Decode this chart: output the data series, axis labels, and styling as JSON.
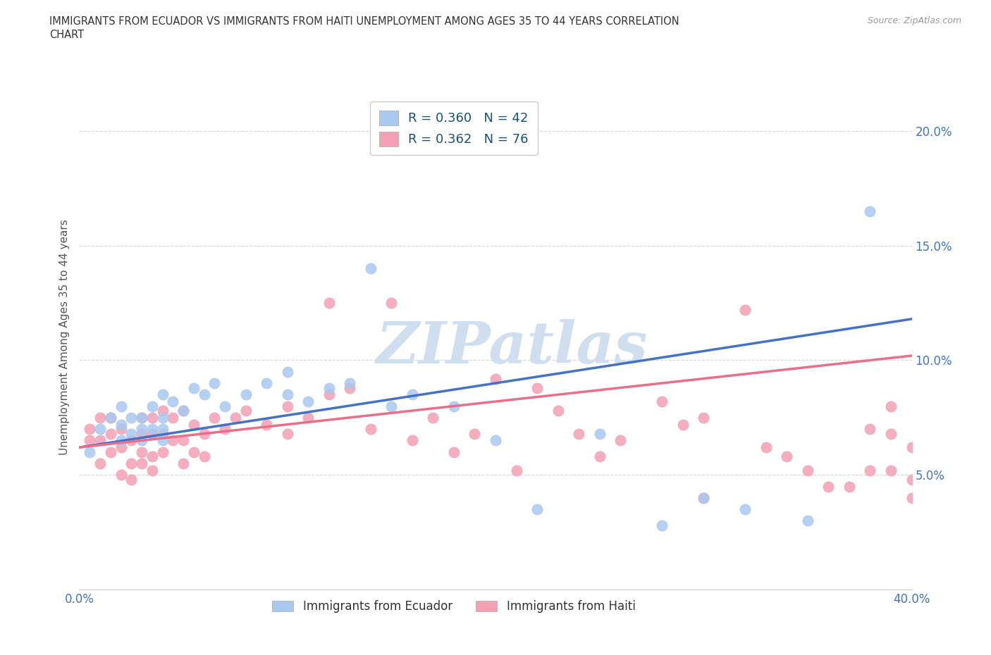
{
  "title_line1": "IMMIGRANTS FROM ECUADOR VS IMMIGRANTS FROM HAITI UNEMPLOYMENT AMONG AGES 35 TO 44 YEARS CORRELATION",
  "title_line2": "CHART",
  "source_text": "Source: ZipAtlas.com",
  "ylabel": "Unemployment Among Ages 35 to 44 years",
  "xlim": [
    0.0,
    0.4
  ],
  "ylim": [
    0.0,
    0.22
  ],
  "xticks": [
    0.0,
    0.05,
    0.1,
    0.15,
    0.2,
    0.25,
    0.3,
    0.35,
    0.4
  ],
  "yticks": [
    0.0,
    0.05,
    0.1,
    0.15,
    0.2
  ],
  "ecuador_color": "#a8c8f0",
  "haiti_color": "#f4a0b5",
  "ecuador_line_color": "#4472c4",
  "haiti_line_color": "#e8708a",
  "ecuador_R": 0.36,
  "ecuador_N": 42,
  "haiti_R": 0.362,
  "haiti_N": 76,
  "ecuador_scatter_x": [
    0.005,
    0.01,
    0.015,
    0.02,
    0.02,
    0.02,
    0.025,
    0.025,
    0.03,
    0.03,
    0.03,
    0.035,
    0.035,
    0.04,
    0.04,
    0.04,
    0.04,
    0.045,
    0.05,
    0.055,
    0.06,
    0.065,
    0.07,
    0.08,
    0.09,
    0.1,
    0.1,
    0.11,
    0.12,
    0.13,
    0.14,
    0.15,
    0.16,
    0.18,
    0.2,
    0.22,
    0.25,
    0.28,
    0.3,
    0.32,
    0.35,
    0.38
  ],
  "ecuador_scatter_y": [
    0.06,
    0.07,
    0.075,
    0.065,
    0.072,
    0.08,
    0.068,
    0.075,
    0.065,
    0.07,
    0.075,
    0.07,
    0.08,
    0.065,
    0.07,
    0.075,
    0.085,
    0.082,
    0.078,
    0.088,
    0.085,
    0.09,
    0.08,
    0.085,
    0.09,
    0.095,
    0.085,
    0.082,
    0.088,
    0.09,
    0.14,
    0.08,
    0.085,
    0.08,
    0.065,
    0.035,
    0.068,
    0.028,
    0.04,
    0.035,
    0.03,
    0.165
  ],
  "haiti_scatter_x": [
    0.005,
    0.005,
    0.01,
    0.01,
    0.01,
    0.015,
    0.015,
    0.015,
    0.02,
    0.02,
    0.02,
    0.025,
    0.025,
    0.025,
    0.03,
    0.03,
    0.03,
    0.03,
    0.035,
    0.035,
    0.035,
    0.035,
    0.04,
    0.04,
    0.04,
    0.045,
    0.045,
    0.05,
    0.05,
    0.05,
    0.055,
    0.055,
    0.06,
    0.06,
    0.065,
    0.07,
    0.075,
    0.08,
    0.09,
    0.1,
    0.1,
    0.11,
    0.12,
    0.12,
    0.13,
    0.14,
    0.15,
    0.16,
    0.17,
    0.18,
    0.19,
    0.2,
    0.21,
    0.22,
    0.23,
    0.24,
    0.25,
    0.26,
    0.28,
    0.29,
    0.3,
    0.3,
    0.32,
    0.33,
    0.34,
    0.35,
    0.36,
    0.37,
    0.38,
    0.38,
    0.39,
    0.39,
    0.39,
    0.4,
    0.4,
    0.4
  ],
  "haiti_scatter_y": [
    0.065,
    0.07,
    0.055,
    0.065,
    0.075,
    0.06,
    0.068,
    0.075,
    0.05,
    0.062,
    0.07,
    0.048,
    0.055,
    0.065,
    0.055,
    0.06,
    0.068,
    0.075,
    0.052,
    0.058,
    0.068,
    0.075,
    0.06,
    0.068,
    0.078,
    0.065,
    0.075,
    0.055,
    0.065,
    0.078,
    0.06,
    0.072,
    0.058,
    0.068,
    0.075,
    0.07,
    0.075,
    0.078,
    0.072,
    0.068,
    0.08,
    0.075,
    0.085,
    0.125,
    0.088,
    0.07,
    0.125,
    0.065,
    0.075,
    0.06,
    0.068,
    0.092,
    0.052,
    0.088,
    0.078,
    0.068,
    0.058,
    0.065,
    0.082,
    0.072,
    0.04,
    0.075,
    0.122,
    0.062,
    0.058,
    0.052,
    0.045,
    0.045,
    0.052,
    0.07,
    0.052,
    0.068,
    0.08,
    0.048,
    0.062,
    0.04
  ],
  "ecuador_trendline_x": [
    0.0,
    0.4
  ],
  "ecuador_trendline_y": [
    0.062,
    0.118
  ],
  "haiti_trendline_x": [
    0.0,
    0.4
  ],
  "haiti_trendline_y": [
    0.062,
    0.102
  ],
  "background_color": "#ffffff",
  "grid_color": "#cccccc",
  "title_color": "#333333",
  "tick_color": "#4472c4",
  "legend_label_ecuador": "R = 0.360   N = 42",
  "legend_label_haiti": "R = 0.362   N = 76",
  "bottom_legend_ecuador": "Immigrants from Ecuador",
  "bottom_legend_haiti": "Immigrants from Haiti",
  "watermark": "ZIPatlas",
  "watermark_color": "#d0dff0",
  "watermark_fontsize": 60
}
